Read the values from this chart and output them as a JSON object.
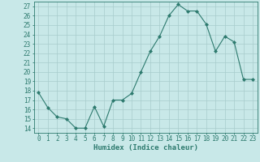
{
  "x": [
    0,
    1,
    2,
    3,
    4,
    5,
    6,
    7,
    8,
    9,
    10,
    11,
    12,
    13,
    14,
    15,
    16,
    17,
    18,
    19,
    20,
    21,
    22,
    23
  ],
  "y": [
    17.8,
    16.2,
    15.2,
    15.0,
    14.0,
    14.0,
    16.3,
    14.2,
    17.0,
    17.0,
    17.7,
    20.0,
    22.2,
    23.8,
    26.0,
    27.2,
    26.5,
    26.5,
    25.1,
    22.2,
    23.8,
    23.2,
    19.2,
    19.2
  ],
  "line_color": "#2d7a6e",
  "marker": "D",
  "marker_size": 2.0,
  "bg_color": "#c8e8e8",
  "grid_color": "#a8cccc",
  "xlabel": "Humidex (Indice chaleur)",
  "xlim": [
    -0.5,
    23.5
  ],
  "ylim": [
    13.5,
    27.5
  ],
  "yticks": [
    14,
    15,
    16,
    17,
    18,
    19,
    20,
    21,
    22,
    23,
    24,
    25,
    26,
    27
  ],
  "xticks": [
    0,
    1,
    2,
    3,
    4,
    5,
    6,
    7,
    8,
    9,
    10,
    11,
    12,
    13,
    14,
    15,
    16,
    17,
    18,
    19,
    20,
    21,
    22,
    23
  ],
  "tick_color": "#2d7a6e",
  "axis_color": "#2d7a6e",
  "label_fontsize": 6.5,
  "tick_fontsize": 5.5
}
